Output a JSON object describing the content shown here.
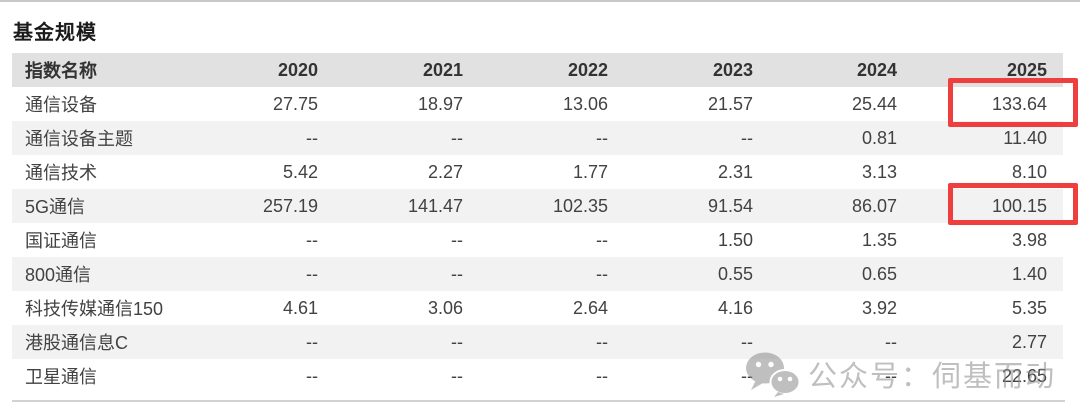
{
  "title": "基金规模",
  "watermark": {
    "label": "公众号：伺基而动",
    "icon": "wechat-logo"
  },
  "colors": {
    "header_bg": "#e1e1e1",
    "alt_row_bg": "#f2f2f2",
    "highlight_border": "#ee3e3e",
    "top_rule": "#c9c9c9",
    "bottom_rule": "#d2d2d2",
    "text": "#424242",
    "watermark_gray": "#8c8c8c"
  },
  "chart_data": {
    "type": "table",
    "title": "基金规模",
    "columns": [
      "指数名称",
      "2020",
      "2021",
      "2022",
      "2023",
      "2024",
      "2025"
    ],
    "rows": [
      [
        "通信设备",
        "27.75",
        "18.97",
        "13.06",
        "21.57",
        "25.44",
        "133.64"
      ],
      [
        "通信设备主题",
        "--",
        "--",
        "--",
        "--",
        "0.81",
        "11.40"
      ],
      [
        "通信技术",
        "5.42",
        "2.27",
        "1.77",
        "2.31",
        "3.13",
        "8.10"
      ],
      [
        "5G通信",
        "257.19",
        "141.47",
        "102.35",
        "91.54",
        "86.07",
        "100.15"
      ],
      [
        "国证通信",
        "--",
        "--",
        "--",
        "1.50",
        "1.35",
        "3.98"
      ],
      [
        "800通信",
        "--",
        "--",
        "--",
        "0.55",
        "0.65",
        "1.40"
      ],
      [
        "科技传媒通信150",
        "4.61",
        "3.06",
        "2.64",
        "4.16",
        "3.92",
        "5.35"
      ],
      [
        "港股通信息C",
        "--",
        "--",
        "--",
        "--",
        "--",
        "2.77"
      ],
      [
        "卫星通信",
        "--",
        "--",
        "--",
        "--",
        "--",
        "22.65"
      ]
    ],
    "highlights": [
      {
        "row": "通信设备",
        "column": "2025",
        "value": "133.64"
      },
      {
        "row": "5G通信",
        "column": "2025",
        "value": "100.15"
      }
    ],
    "row_striping": "alternate rows light gray starting from second data row",
    "alignment": "first column left, year columns right"
  }
}
